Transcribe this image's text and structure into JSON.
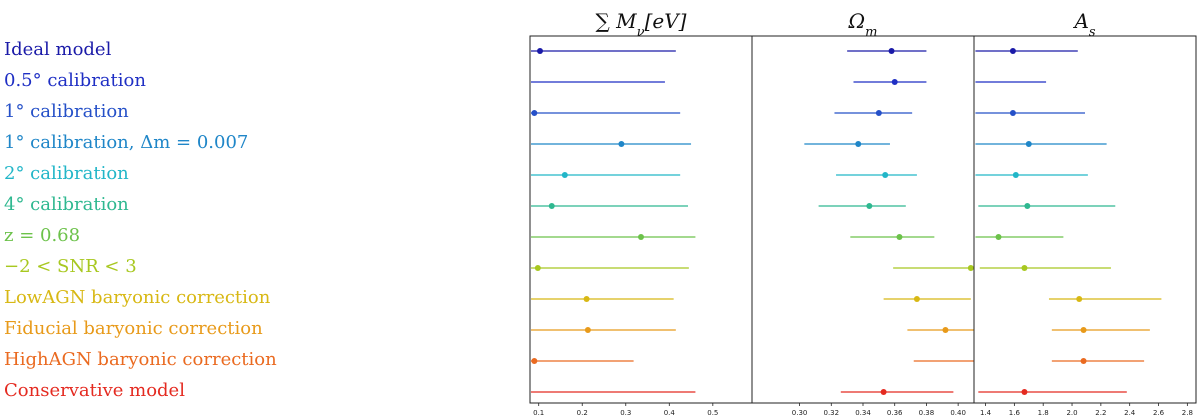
{
  "chart_data": {
    "type": "forest",
    "models": [
      {
        "label": "Ideal model",
        "color": "#1a1aa8"
      },
      {
        "label": "0.5° calibration",
        "color": "#1f2fc4"
      },
      {
        "label": "1° calibration",
        "color": "#2550c8"
      },
      {
        "label": "1° calibration, Δm = 0.007",
        "color": "#1f86c8"
      },
      {
        "label": "2° calibration",
        "color": "#22b6c8"
      },
      {
        "label": "4° calibration",
        "color": "#2fb890"
      },
      {
        "label": "z = 0.68",
        "color": "#6cc24a"
      },
      {
        "label": "−2 < SNR < 3",
        "color": "#a8c820"
      },
      {
        "label": "LowAGN baryonic correction",
        "color": "#d8b814"
      },
      {
        "label": "Fiducial baryonic correction",
        "color": "#e89a1a"
      },
      {
        "label": "HighAGN baryonic correction",
        "color": "#ea6a20"
      },
      {
        "label": "Conservative model",
        "color": "#e42a20"
      }
    ],
    "panels": [
      {
        "title": "∑ M_ν[eV]",
        "xlim": [
          0.08,
          0.59
        ],
        "ticks": [
          0.1,
          0.2,
          0.3,
          0.4,
          0.5
        ],
        "tick_labels": [
          "0.1",
          "0.2",
          "0.3",
          "0.4",
          "0.5"
        ],
        "intervals": [
          [
            0.103,
            0.082,
            0.415
          ],
          [
            null,
            0.082,
            0.39
          ],
          [
            0.09,
            0.082,
            0.425
          ],
          [
            0.29,
            0.082,
            0.45
          ],
          [
            0.16,
            0.082,
            0.425
          ],
          [
            0.13,
            0.082,
            0.443
          ],
          [
            0.335,
            0.082,
            0.46
          ],
          [
            0.098,
            0.082,
            0.445
          ],
          [
            0.21,
            0.082,
            0.41
          ],
          [
            0.213,
            0.082,
            0.415
          ],
          [
            0.09,
            0.082,
            0.318
          ],
          [
            null,
            0.082,
            0.46
          ]
        ]
      },
      {
        "title": "Ω_m",
        "xlim": [
          0.27,
          0.41
        ],
        "ticks": [
          0.3,
          0.32,
          0.34,
          0.36,
          0.38,
          0.4
        ],
        "tick_labels": [
          "0.30",
          "0.32",
          "0.34",
          "0.36",
          "0.38",
          "0.40"
        ],
        "intervals": [
          [
            0.358,
            0.33,
            0.38
          ],
          [
            0.36,
            0.334,
            0.38
          ],
          [
            0.35,
            0.322,
            0.371
          ],
          [
            0.337,
            0.303,
            0.357
          ],
          [
            0.354,
            0.323,
            0.374
          ],
          [
            0.344,
            0.312,
            0.367
          ],
          [
            0.363,
            0.332,
            0.385
          ],
          [
            0.408,
            0.359,
            0.41
          ],
          [
            0.374,
            0.353,
            0.408
          ],
          [
            0.392,
            0.368,
            0.41
          ],
          [
            null,
            0.372,
            0.41
          ],
          [
            0.353,
            0.326,
            0.397
          ]
        ]
      },
      {
        "title": "A_s",
        "xlim": [
          1.32,
          2.86
        ],
        "ticks": [
          1.4,
          1.6,
          1.8,
          2.0,
          2.2,
          2.4,
          2.6,
          2.8
        ],
        "tick_labels": [
          "1.4",
          "1.6",
          "1.8",
          "2.0",
          "2.2",
          "2.4",
          "2.6",
          "2.8"
        ],
        "intervals": [
          [
            1.59,
            1.33,
            2.04
          ],
          [
            null,
            1.33,
            1.82
          ],
          [
            1.59,
            1.33,
            2.09
          ],
          [
            1.7,
            1.33,
            2.24
          ],
          [
            1.61,
            1.33,
            2.11
          ],
          [
            1.69,
            1.35,
            2.3
          ],
          [
            1.49,
            1.33,
            1.94
          ],
          [
            1.67,
            1.36,
            2.27
          ],
          [
            2.05,
            1.84,
            2.62
          ],
          [
            2.08,
            1.86,
            2.54
          ],
          [
            2.08,
            1.86,
            2.5
          ],
          [
            1.67,
            1.35,
            2.38
          ]
        ]
      }
    ]
  }
}
